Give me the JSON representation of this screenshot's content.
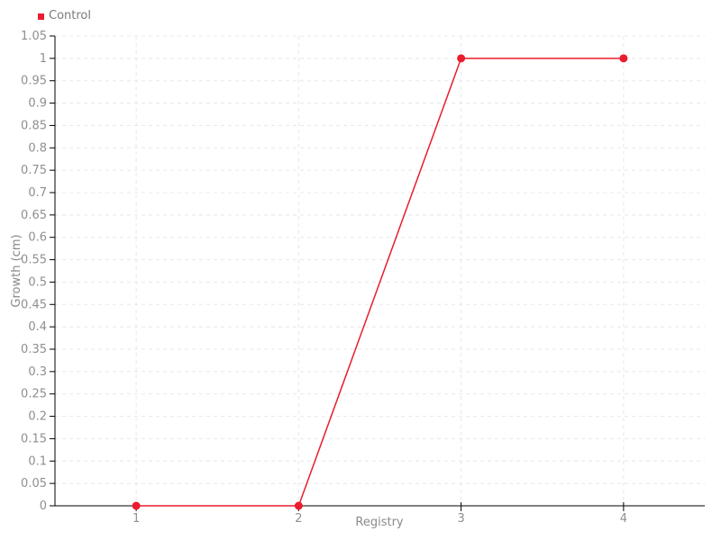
{
  "chart_data": {
    "type": "line",
    "title": "",
    "xlabel": "Registry",
    "ylabel": "Growth (cm)",
    "xlim": [
      0.5,
      4.5
    ],
    "ylim": [
      0,
      1.05
    ],
    "grid": "dashed",
    "legend_position": "top-left",
    "series": [
      {
        "name": "Control",
        "color": "#ea1c2d",
        "marker": "circle",
        "x": [
          1,
          2,
          3,
          4
        ],
        "y": [
          0,
          0,
          1,
          1
        ]
      }
    ],
    "xtick_values": [
      1,
      2,
      3,
      4
    ],
    "xtick_labels": [
      "1",
      "2",
      "3",
      "4"
    ],
    "ytick_values": [
      0,
      0.05,
      0.1,
      0.15,
      0.2,
      0.25,
      0.3,
      0.35,
      0.4,
      0.45,
      0.5,
      0.55,
      0.6,
      0.65,
      0.7,
      0.75,
      0.8,
      0.85,
      0.9,
      0.95,
      1,
      1.05
    ],
    "ytick_labels": [
      "0",
      "0.05",
      "0.1",
      "0.15",
      "0.2",
      "0.25",
      "0.3",
      "0.35",
      "0.4",
      "0.45",
      "0.5",
      "0.55",
      "0.6",
      "0.65",
      "0.7",
      "0.75",
      "0.8",
      "0.85",
      "0.9",
      "0.95",
      "1",
      "1.05"
    ],
    "colors": {
      "axis": "#000000",
      "gridline": "#e8e8e8",
      "tick_label": "#8f8f8f",
      "axis_title": "#8a8a8a",
      "legend_label": "#7b7b7b",
      "background": "#ffffff"
    }
  }
}
